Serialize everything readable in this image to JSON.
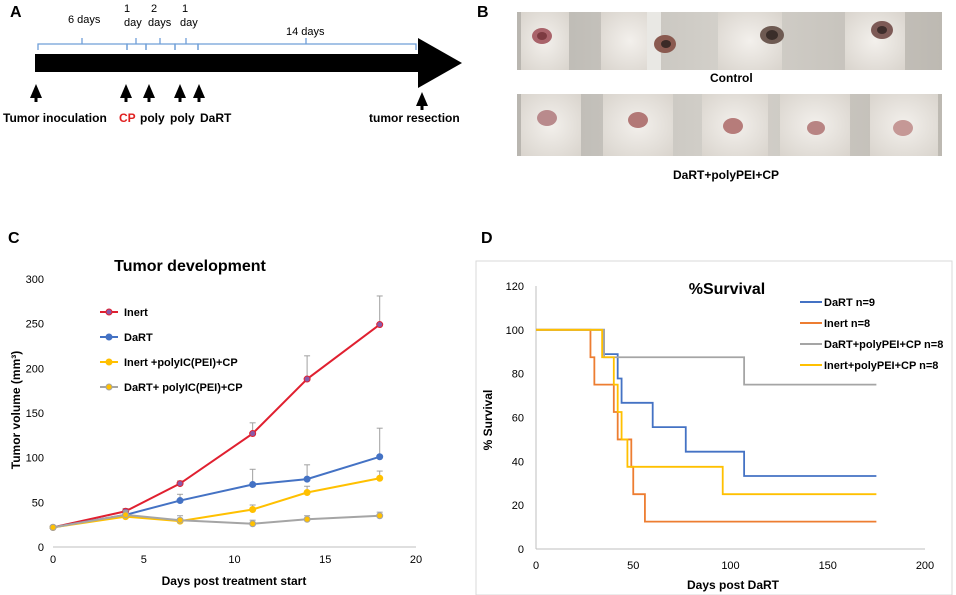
{
  "panels": {
    "a": "A",
    "b": "B",
    "c": "C",
    "d": "D"
  },
  "timeline": {
    "durations": [
      "6 days",
      "1",
      "day",
      "2",
      "days",
      "1",
      "day",
      "14 days"
    ],
    "events": [
      "Tumor inoculation",
      "CP",
      "poly",
      "poly",
      "DaRT",
      "tumor resection"
    ],
    "cp_color": "#e02020"
  },
  "photos": {
    "control_label": "Control",
    "treated_label": "DaRT+polyPEI+CP",
    "control_count": 5,
    "treated_count": 5
  },
  "chart_data": [
    {
      "id": "tumor-development",
      "type": "line",
      "title": "Tumor development",
      "xlabel": "Days post treatment start",
      "ylabel": "Tumor volume (mm³)",
      "xlim": [
        0,
        20
      ],
      "ylim": [
        0,
        300
      ],
      "xticks": [
        0,
        5,
        10,
        15,
        20
      ],
      "yticks": [
        0,
        50,
        100,
        150,
        200,
        250,
        300
      ],
      "x": [
        0,
        4,
        7,
        11,
        14,
        18
      ],
      "series": [
        {
          "name": "Inert",
          "color": "#e02030",
          "marker": "#8a5aa8",
          "values": [
            22,
            40,
            71,
            127,
            188,
            249
          ],
          "err": [
            2,
            3,
            3,
            12,
            26,
            32
          ]
        },
        {
          "name": "DaRT",
          "color": "#4472c4",
          "marker": "#4472c4",
          "values": [
            22,
            36,
            52,
            70,
            76,
            101
          ],
          "err": [
            2,
            5,
            7,
            17,
            16,
            32
          ]
        },
        {
          "name": "Inert +polyIC(PEI)+CP",
          "color": "#ffc000",
          "marker": "#ffc000",
          "values": [
            22,
            34,
            29,
            42,
            61,
            77
          ],
          "err": [
            2,
            4,
            3,
            5,
            7,
            8
          ]
        },
        {
          "name": "DaRT+ polyIC(PEI)+CP",
          "color": "#a5a5a5",
          "marker": "#ffc000",
          "values": [
            22,
            36,
            30,
            26,
            31,
            35
          ],
          "err": [
            2,
            4,
            5,
            4,
            4,
            4
          ]
        }
      ]
    },
    {
      "id": "survival",
      "type": "line",
      "title": "%Survival",
      "xlabel": "Days post DaRT",
      "ylabel": "% Survival",
      "xlim": [
        0,
        200
      ],
      "ylim": [
        0,
        120
      ],
      "xticks": [
        0,
        50,
        100,
        150,
        200
      ],
      "yticks": [
        0,
        20,
        40,
        60,
        80,
        100,
        120
      ],
      "step": true,
      "series": [
        {
          "name": "DaRT n=9",
          "color": "#4472c4",
          "points": [
            [
              0,
              100
            ],
            [
              35,
              100
            ],
            [
              35,
              88.9
            ],
            [
              42,
              88.9
            ],
            [
              42,
              77.8
            ],
            [
              44,
              77.8
            ],
            [
              44,
              66.7
            ],
            [
              60,
              66.7
            ],
            [
              60,
              55.6
            ],
            [
              77,
              55.6
            ],
            [
              77,
              44.4
            ],
            [
              107,
              44.4
            ],
            [
              107,
              33.3
            ],
            [
              175,
              33.3
            ]
          ]
        },
        {
          "name": "Inert n=8",
          "color": "#ed7d31",
          "points": [
            [
              0,
              100
            ],
            [
              28,
              100
            ],
            [
              28,
              87.5
            ],
            [
              30,
              87.5
            ],
            [
              30,
              75
            ],
            [
              40,
              75
            ],
            [
              40,
              62.5
            ],
            [
              42,
              62.5
            ],
            [
              42,
              50
            ],
            [
              49,
              50
            ],
            [
              49,
              37.5
            ],
            [
              50,
              37.5
            ],
            [
              50,
              25
            ],
            [
              56,
              25
            ],
            [
              56,
              12.5
            ],
            [
              175,
              12.5
            ]
          ]
        },
        {
          "name": "DaRT+polyPEI+CP n=8",
          "color": "#a5a5a5",
          "points": [
            [
              0,
              100
            ],
            [
              35,
              100
            ],
            [
              35,
              87.5
            ],
            [
              107,
              87.5
            ],
            [
              107,
              75
            ],
            [
              175,
              75
            ]
          ]
        },
        {
          "name": "Inert+polyPEI+CP n=8",
          "color": "#ffc000",
          "points": [
            [
              0,
              100
            ],
            [
              34,
              100
            ],
            [
              34,
              87.5
            ],
            [
              40,
              87.5
            ],
            [
              40,
              75
            ],
            [
              42,
              75
            ],
            [
              42,
              62.5
            ],
            [
              44,
              62.5
            ],
            [
              44,
              50
            ],
            [
              47,
              50
            ],
            [
              47,
              37.5
            ],
            [
              96,
              37.5
            ],
            [
              96,
              25
            ],
            [
              175,
              25
            ]
          ]
        }
      ]
    }
  ]
}
